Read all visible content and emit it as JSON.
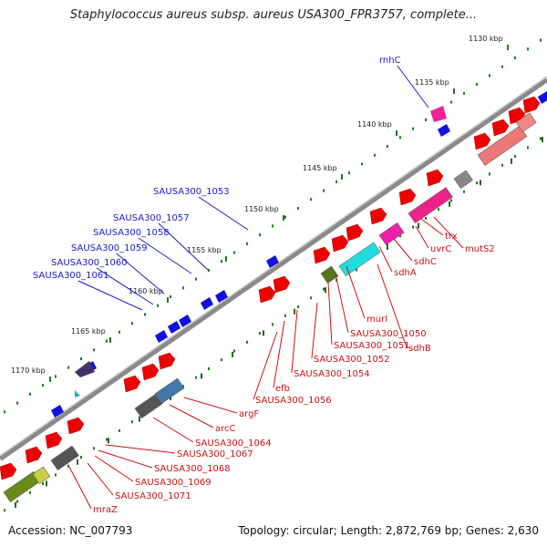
{
  "title": "Staphylococcus aureus subsp. aureus USA300_FPR3757, complete...",
  "footer": {
    "accession": "Accession: NC_007793",
    "summary": "Topology: circular; Length: 2,872,769 bp; Genes: 2,630"
  },
  "colors": {
    "backbone": "#8a8a8a",
    "tick": "#1a7a1a",
    "label_blue": "#1a1acc",
    "label_red": "#cc1111"
  },
  "ticks": [
    "1130 kbp",
    "1135 kbp",
    "1140 kbp",
    "1145 kbp",
    "1150 kbp",
    "1155 kbp",
    "1160 kbp",
    "1165 kbp",
    "1170 kbp"
  ],
  "genes_forward": [
    "rnhC",
    "SAUSA300_1053",
    "SAUSA300_1057",
    "SAUSA300_1058",
    "SAUSA300_1059",
    "SAUSA300_1060",
    "SAUSA300_1061"
  ],
  "genes_reverse": [
    "mutS2",
    "trx",
    "uvrC",
    "sdhC",
    "sdhA",
    "murI",
    "SAUSA300_1050",
    "sdhB",
    "SAUSA300_1051",
    "SAUSA300_1052",
    "SAUSA300_1054",
    "efb",
    "SAUSA300_1056",
    "argF",
    "arcC",
    "SAUSA300_1064",
    "SAUSA300_1067",
    "SAUSA300_1068",
    "SAUSA300_1069",
    "SAUSA300_1071",
    "mraZ"
  ]
}
